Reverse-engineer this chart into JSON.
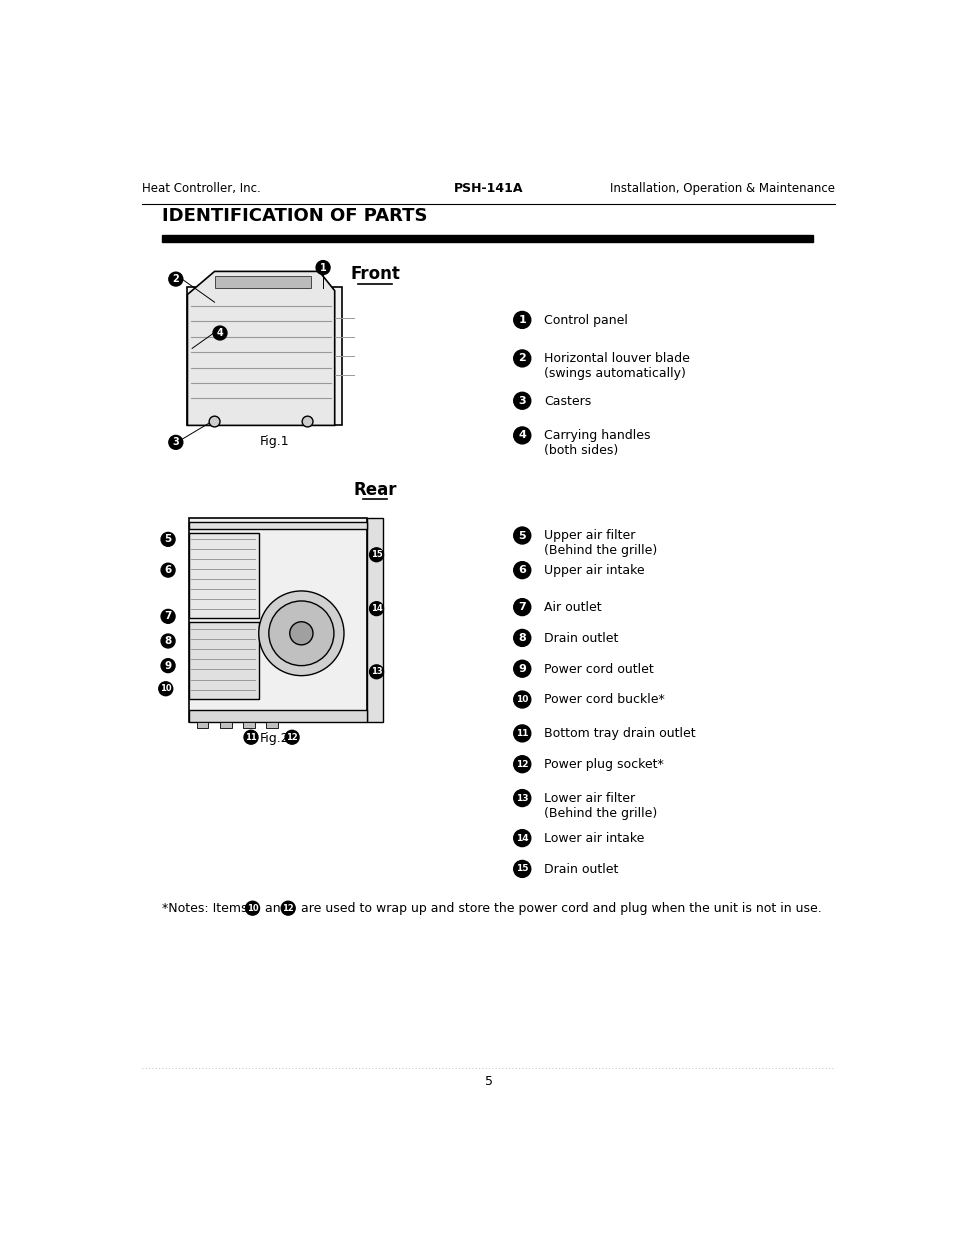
{
  "bg_color": "#ffffff",
  "header_left": "Heat Controller, Inc.",
  "header_center": "PSH-141A",
  "header_right": "Installation, Operation & Maintenance",
  "section_title": "IDENTIFICATION OF PARTS",
  "front_label": "Front",
  "rear_label": "Rear",
  "fig1_label": "Fig.1",
  "fig2_label": "Fig.2",
  "front_items": [
    {
      "num": "1",
      "text": "Control panel"
    },
    {
      "num": "2",
      "text": "Horizontal louver blade\n(swings automatically)"
    },
    {
      "num": "3",
      "text": "Casters"
    },
    {
      "num": "4",
      "text": "Carrying handles\n(both sides)"
    }
  ],
  "rear_items": [
    {
      "num": "5",
      "text": "Upper air filter\n(Behind the grille)"
    },
    {
      "num": "6",
      "text": "Upper air intake"
    },
    {
      "num": "7",
      "text": "Air outlet"
    },
    {
      "num": "8",
      "text": "Drain outlet"
    },
    {
      "num": "9",
      "text": "Power cord outlet"
    },
    {
      "num": "10",
      "text": "Power cord buckle*"
    },
    {
      "num": "11",
      "text": "Bottom tray drain outlet"
    },
    {
      "num": "12",
      "text": "Power plug socket*"
    },
    {
      "num": "13",
      "text": "Lower air filter\n(Behind the grille)"
    },
    {
      "num": "14",
      "text": "Lower air intake"
    },
    {
      "num": "15",
      "text": "Drain outlet"
    }
  ],
  "page_number": "5"
}
